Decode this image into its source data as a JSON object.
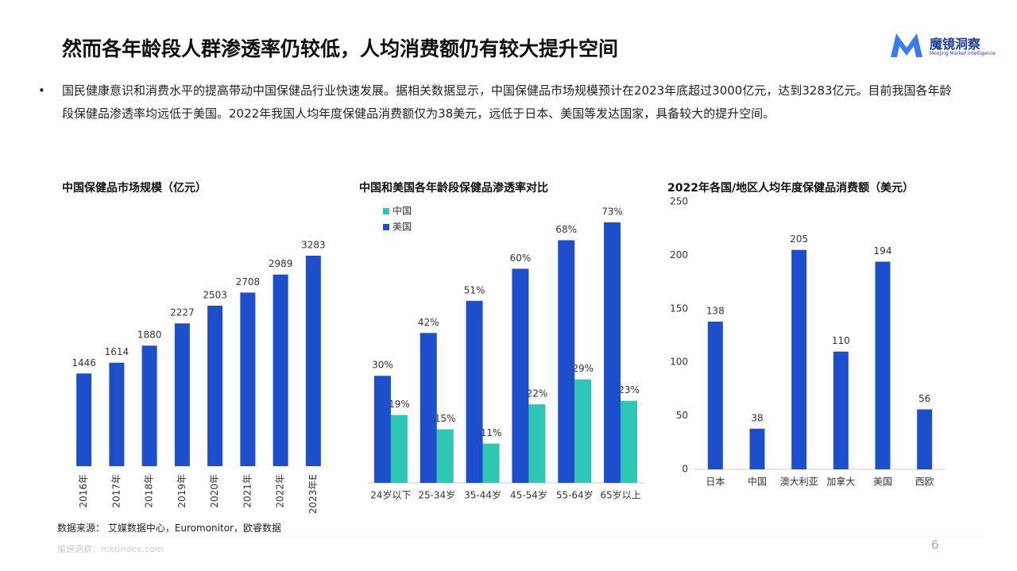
{
  "header": {
    "title": "然而各年龄段人群渗透率仍较低，人均消费额仍有较大提升空间",
    "logo": "魔镜洞察",
    "logo_sub": "Moojing Market Intelligence"
  },
  "bullet": "国民健康意识和消费水平的提高带动中国保健品行业快速发展。据相关数据显示，中国保健品市场规模预计在2023年底超过3000亿元，达到3283亿元。目前我国各年龄段保健品渗透率均远低于美国。2022年我国人均年度保健品消费额仅为38美元，远低于日本、美国等发达国家，具备较大的提升空间。",
  "chart_data": [
    {
      "type": "bar",
      "title": "中国保健品市场规模（亿元）",
      "categories": [
        "2016年",
        "2017年",
        "2018年",
        "2019年",
        "2020年",
        "2021年",
        "2022年",
        "2023年E"
      ],
      "values": [
        1446,
        1614,
        1880,
        2227,
        2503,
        2708,
        2989,
        3283
      ],
      "color": "#1d4fcc"
    },
    {
      "type": "grouped_bar",
      "title": "中国和美国各年龄段保健品渗透率对比",
      "categories": [
        "24岁以下",
        "25-34岁",
        "35-44岁",
        "45-54岁",
        "55-64岁",
        "65岁以上"
      ],
      "series": [
        {
          "name": "中国",
          "color": "#2ec7b4",
          "values": [
            19,
            15,
            11,
            22,
            29,
            23
          ],
          "value_labels": [
            "19%",
            "15%",
            "11%",
            "22%",
            "29%",
            "23%"
          ]
        },
        {
          "name": "美国",
          "color": "#1d4fcc",
          "values": [
            30,
            42,
            51,
            60,
            68,
            73
          ],
          "value_labels": [
            "30%",
            "42%",
            "51%",
            "60%",
            "68%",
            "73%"
          ]
        }
      ],
      "legend": "top-left"
    },
    {
      "type": "bar",
      "title": "2022年各国/地区人均年度保健品消费额（美元）",
      "categories": [
        "日本",
        "中国",
        "澳大利亚",
        "加拿大",
        "美国",
        "西欧"
      ],
      "values": [
        138,
        38,
        205,
        110,
        194,
        56
      ],
      "color": "#1d4fcc",
      "ylim": [
        0,
        250
      ],
      "yticks": [
        0,
        50,
        100,
        150,
        200,
        250
      ],
      "grid": false
    }
  ],
  "source": "数据来源： 艾媒数据中心，Euromonitor，欧睿数据",
  "footer": "魔镜洞察：mktindex.com",
  "page_number": "6"
}
